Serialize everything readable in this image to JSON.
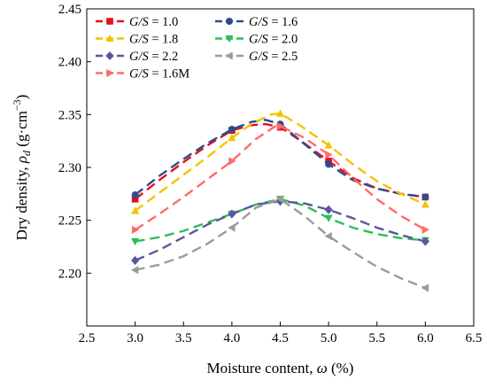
{
  "chart_data": {
    "type": "line",
    "xlabel_text": "Moisture content, ",
    "xlabel_symbol": "ω",
    "xlabel_unit": " (%)",
    "ylabel_text": "Dry density, ",
    "ylabel_symbol": "ρ",
    "ylabel_subscript": "d",
    "ylabel_unit_open": " (g·cm",
    "ylabel_unit_exp": "−3",
    "ylabel_unit_close": ")",
    "xlim": [
      2.5,
      6.5
    ],
    "ylim": [
      2.15,
      2.45
    ],
    "xticks": [
      "2.5",
      "3.0",
      "3.5",
      "4.0",
      "4.5",
      "5.0",
      "5.5",
      "6.0",
      "6.5"
    ],
    "yticks": [
      "2.20",
      "2.25",
      "2.30",
      "2.35",
      "2.40",
      "2.45"
    ],
    "grid": false,
    "legend_position": "top-left",
    "legend_prefix": "G/S",
    "series": [
      {
        "name": "G/S = 1.0",
        "label_value": " = 1.0",
        "color": "#e3101d",
        "marker": "square",
        "points": [
          [
            3.0,
            2.27
          ],
          [
            4.0,
            2.335
          ],
          [
            4.5,
            2.338
          ],
          [
            5.0,
            2.306
          ],
          [
            6.0,
            2.272
          ]
        ],
        "curve": [
          [
            3.0,
            2.27
          ],
          [
            3.25,
            2.288
          ],
          [
            3.5,
            2.305
          ],
          [
            3.75,
            2.321
          ],
          [
            4.0,
            2.335
          ],
          [
            4.2,
            2.34
          ],
          [
            4.35,
            2.341
          ],
          [
            4.5,
            2.338
          ],
          [
            4.7,
            2.326
          ],
          [
            5.0,
            2.306
          ],
          [
            5.25,
            2.29
          ],
          [
            5.5,
            2.28
          ],
          [
            5.75,
            2.275
          ],
          [
            6.0,
            2.272
          ]
        ]
      },
      {
        "name": "G/S = 1.6",
        "label_value": " = 1.6",
        "color": "#2f4c8c",
        "marker": "circle",
        "points": [
          [
            3.0,
            2.274
          ],
          [
            4.0,
            2.336
          ],
          [
            4.5,
            2.341
          ],
          [
            5.0,
            2.303
          ],
          [
            6.0,
            2.272
          ]
        ],
        "curve": [
          [
            3.0,
            2.274
          ],
          [
            3.25,
            2.292
          ],
          [
            3.5,
            2.308
          ],
          [
            3.75,
            2.323
          ],
          [
            4.0,
            2.336
          ],
          [
            4.2,
            2.343
          ],
          [
            4.35,
            2.345
          ],
          [
            4.5,
            2.341
          ],
          [
            4.7,
            2.326
          ],
          [
            5.0,
            2.303
          ],
          [
            5.25,
            2.288
          ],
          [
            5.5,
            2.28
          ],
          [
            5.75,
            2.275
          ],
          [
            6.0,
            2.272
          ]
        ]
      },
      {
        "name": "G/S = 1.8",
        "label_value": " = 1.8",
        "color": "#f5c200",
        "marker": "triangle-up",
        "points": [
          [
            3.0,
            2.259
          ],
          [
            4.0,
            2.328
          ],
          [
            4.5,
            2.351
          ],
          [
            5.0,
            2.321
          ],
          [
            6.0,
            2.265
          ]
        ],
        "curve": [
          [
            3.0,
            2.259
          ],
          [
            3.25,
            2.276
          ],
          [
            3.5,
            2.293
          ],
          [
            3.75,
            2.31
          ],
          [
            4.0,
            2.328
          ],
          [
            4.2,
            2.341
          ],
          [
            4.4,
            2.35
          ],
          [
            4.5,
            2.351
          ],
          [
            4.7,
            2.34
          ],
          [
            5.0,
            2.321
          ],
          [
            5.25,
            2.303
          ],
          [
            5.5,
            2.287
          ],
          [
            5.75,
            2.275
          ],
          [
            6.0,
            2.265
          ]
        ]
      },
      {
        "name": "G/S = 2.0",
        "label_value": " = 2.0",
        "color": "#2dbd5a",
        "marker": "triangle-down",
        "points": [
          [
            3.0,
            2.23
          ],
          [
            4.0,
            2.256
          ],
          [
            4.5,
            2.27
          ],
          [
            5.0,
            2.252
          ],
          [
            6.0,
            2.231
          ]
        ],
        "curve": [
          [
            3.0,
            2.23
          ],
          [
            3.25,
            2.234
          ],
          [
            3.5,
            2.24
          ],
          [
            3.75,
            2.248
          ],
          [
            4.0,
            2.256
          ],
          [
            4.25,
            2.265
          ],
          [
            4.5,
            2.27
          ],
          [
            4.75,
            2.264
          ],
          [
            5.0,
            2.252
          ],
          [
            5.25,
            2.243
          ],
          [
            5.5,
            2.237
          ],
          [
            5.75,
            2.233
          ],
          [
            6.0,
            2.231
          ]
        ]
      },
      {
        "name": "G/S = 2.2",
        "label_value": " = 2.2",
        "color": "#5757a0",
        "marker": "diamond",
        "points": [
          [
            3.0,
            2.212
          ],
          [
            4.0,
            2.256
          ],
          [
            4.5,
            2.268
          ],
          [
            5.0,
            2.26
          ],
          [
            6.0,
            2.23
          ]
        ],
        "curve": [
          [
            3.0,
            2.212
          ],
          [
            3.25,
            2.222
          ],
          [
            3.5,
            2.234
          ],
          [
            3.75,
            2.246
          ],
          [
            4.0,
            2.256
          ],
          [
            4.25,
            2.265
          ],
          [
            4.5,
            2.268
          ],
          [
            4.75,
            2.266
          ],
          [
            5.0,
            2.26
          ],
          [
            5.25,
            2.252
          ],
          [
            5.5,
            2.243
          ],
          [
            5.75,
            2.236
          ],
          [
            6.0,
            2.23
          ]
        ]
      },
      {
        "name": "G/S = 2.5",
        "label_value": " = 2.5",
        "color": "#9b9b9b",
        "marker": "triangle-left",
        "points": [
          [
            3.0,
            2.203
          ],
          [
            4.0,
            2.243
          ],
          [
            4.5,
            2.27
          ],
          [
            5.0,
            2.235
          ],
          [
            6.0,
            2.186
          ]
        ],
        "curve": [
          [
            3.0,
            2.203
          ],
          [
            3.25,
            2.208
          ],
          [
            3.5,
            2.216
          ],
          [
            3.75,
            2.228
          ],
          [
            4.0,
            2.243
          ],
          [
            4.25,
            2.262
          ],
          [
            4.5,
            2.27
          ],
          [
            4.75,
            2.254
          ],
          [
            5.0,
            2.235
          ],
          [
            5.25,
            2.22
          ],
          [
            5.5,
            2.206
          ],
          [
            5.75,
            2.195
          ],
          [
            6.0,
            2.186
          ]
        ]
      },
      {
        "name": "G/S = 1.6M",
        "label_value": " = 1.6M",
        "color": "#ff6b6b",
        "marker": "triangle-right",
        "points": [
          [
            3.0,
            2.241
          ],
          [
            4.0,
            2.306
          ],
          [
            4.5,
            2.339
          ],
          [
            5.0,
            2.312
          ],
          [
            6.0,
            2.241
          ]
        ],
        "curve": [
          [
            3.0,
            2.241
          ],
          [
            3.25,
            2.256
          ],
          [
            3.5,
            2.272
          ],
          [
            3.75,
            2.289
          ],
          [
            4.0,
            2.306
          ],
          [
            4.25,
            2.327
          ],
          [
            4.45,
            2.339
          ],
          [
            4.5,
            2.339
          ],
          [
            4.75,
            2.328
          ],
          [
            5.0,
            2.312
          ],
          [
            5.25,
            2.29
          ],
          [
            5.5,
            2.27
          ],
          [
            5.75,
            2.254
          ],
          [
            6.0,
            2.241
          ]
        ]
      }
    ]
  }
}
